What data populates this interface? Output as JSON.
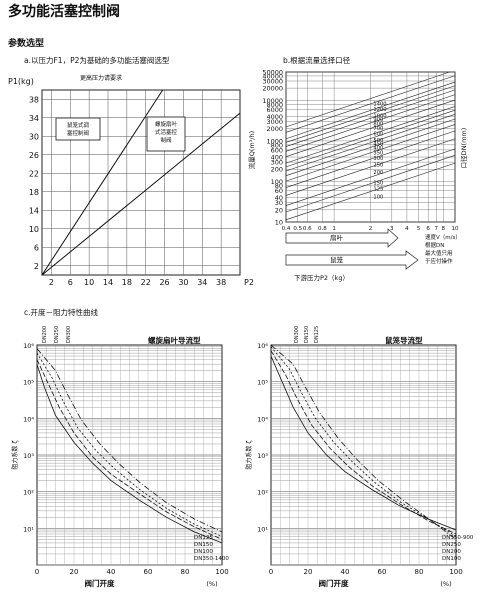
{
  "page": {
    "title": "多功能活塞控制阀",
    "section_title": "参数选型"
  },
  "chart_data": [
    {
      "type": "line",
      "caption": "a.以压力F1，P2为基础的多功能活塞阀选型",
      "ylabel": "P1(kg)",
      "xlabel": "P2",
      "xticks": [
        2,
        6,
        10,
        14,
        18,
        22,
        26,
        30,
        34,
        38
      ],
      "yticks": [
        2,
        6,
        10,
        14,
        18,
        22,
        26,
        30,
        34,
        38
      ],
      "xlim": [
        0,
        42
      ],
      "ylim": [
        0,
        40
      ],
      "top_note": "更高压力请要求",
      "grid": true,
      "regions": [
        {
          "label_lines": [
            "鼠笼式调",
            "塞控制阀"
          ]
        },
        {
          "label_lines": [
            "螺旋扇叶",
            "式活塞控",
            "制阀"
          ]
        }
      ],
      "series": [
        {
          "x": [
            0,
            25.6
          ],
          "y": [
            0,
            40
          ]
        },
        {
          "x": [
            0,
            42
          ],
          "y": [
            0,
            35
          ]
        }
      ]
    },
    {
      "type": "line",
      "caption": "b.根据流量选择口径",
      "ylabel": "流量Q(m³/h)",
      "right_label": "口径DN(mm)",
      "yticks": [
        10,
        20,
        30,
        40,
        60,
        80,
        100,
        200,
        300,
        400,
        600,
        800,
        1000,
        2000,
        3000,
        4000,
        6000,
        8000,
        10000,
        20000,
        30000,
        40000,
        50000
      ],
      "xticks": [
        "0.4",
        "0.5",
        "0.6",
        "0.8",
        "1",
        "2",
        "3",
        "4",
        "5",
        "6",
        "7",
        "8",
        "10"
      ],
      "xlim": [
        0.4,
        10
      ],
      "ylim": [
        10,
        50000
      ],
      "xscale": "log",
      "yscale": "log",
      "dn_labels": [
        "1400",
        "1200",
        "1000",
        "900",
        "800",
        "700",
        "600",
        "500",
        "450",
        "400",
        "350",
        "300",
        "250",
        "200",
        "150",
        "125",
        "100"
      ],
      "dn_values": [
        1400,
        1200,
        1000,
        900,
        800,
        700,
        600,
        500,
        450,
        400,
        350,
        300,
        250,
        200,
        150,
        125,
        100
      ],
      "arrow_labels": [
        "扇叶",
        "鼠笼"
      ],
      "velocity_note": [
        "速度V（m/s）",
        "根据DN",
        "最大值只用",
        "于应付操作"
      ],
      "bottom_label": "下游压力P2（kg）"
    },
    {
      "type": "line",
      "caption": "c.开度－阻力特性曲线",
      "panels": [
        {
          "title": "螺旋扇叶导流型",
          "xlabel": "阀门开度",
          "xunit": "(%)",
          "ylabel": "阻力系数 ζ",
          "xticks": [
            0,
            20,
            40,
            60,
            80,
            100
          ],
          "yticks": [
            "10⁶",
            "10⁵",
            "10⁴",
            "10³",
            "10²",
            "10¹"
          ],
          "xlim": [
            0,
            100
          ],
          "ylim": [
            1,
            1000000
          ],
          "yscale": "log",
          "top_labels": [
            "DN200",
            "DN250",
            "DN300"
          ],
          "right_labels": [
            "DN125",
            "DN150",
            "DN100",
            "DN350-1400"
          ],
          "series": [
            {
              "x": [
                0,
                4,
                10,
                20,
                30,
                40,
                55,
                70,
                85,
                100
              ],
              "y": [
                300000,
                70000,
                12000,
                2200,
                600,
                200,
                60,
                20,
                8,
                4
              ]
            },
            {
              "x": [
                0,
                6,
                12,
                20,
                30,
                40,
                55,
                70,
                85,
                100
              ],
              "y": [
                400000,
                90000,
                20000,
                4000,
                900,
                300,
                90,
                28,
                11,
                5
              ]
            },
            {
              "x": [
                0,
                8,
                14,
                22,
                32,
                42,
                55,
                70,
                85,
                100
              ],
              "y": [
                600000,
                130000,
                30000,
                5500,
                1300,
                420,
                120,
                35,
                13,
                6
              ]
            },
            {
              "x": [
                0,
                10,
                16,
                24,
                34,
                44,
                56,
                70,
                85,
                100
              ],
              "y": [
                800000,
                200000,
                50000,
                9000,
                2000,
                600,
                170,
                50,
                18,
                8
              ]
            }
          ]
        },
        {
          "title": "鼠笼导流型",
          "xlabel": "阀门开度",
          "xunit": "(%)",
          "ylabel": "阻力系数 ζ",
          "xticks": [
            0,
            20,
            40,
            60,
            80,
            100
          ],
          "yticks": [
            "10⁶",
            "10⁵",
            "10⁴",
            "10³",
            "10²",
            "10¹"
          ],
          "xlim": [
            0,
            100
          ],
          "ylim": [
            1,
            1000000
          ],
          "yscale": "log",
          "top_labels": [
            "DN300",
            "DN150",
            "DN125"
          ],
          "right_labels": [
            "DN350-900",
            "DN250",
            "DN200",
            "DN100"
          ],
          "series": [
            {
              "x": [
                0,
                6,
                12,
                20,
                30,
                40,
                55,
                70,
                85,
                100
              ],
              "y": [
                500000,
                100000,
                20000,
                4000,
                1000,
                350,
                110,
                40,
                18,
                9
              ]
            },
            {
              "x": [
                0,
                8,
                14,
                22,
                32,
                42,
                55,
                70,
                85,
                100
              ],
              "y": [
                700000,
                150000,
                35000,
                6500,
                1500,
                480,
                140,
                45,
                16,
                7
              ]
            },
            {
              "x": [
                0,
                10,
                16,
                24,
                34,
                44,
                56,
                70,
                85,
                100
              ],
              "y": [
                900000,
                220000,
                55000,
                10000,
                2200,
                650,
                180,
                52,
                18,
                6
              ]
            },
            {
              "x": [
                0,
                12,
                18,
                26,
                36,
                46,
                58,
                72,
                86,
                100
              ],
              "y": [
                1000000,
                300000,
                80000,
                15000,
                3000,
                800,
                200,
                55,
                17,
                5
              ]
            }
          ]
        }
      ]
    }
  ]
}
